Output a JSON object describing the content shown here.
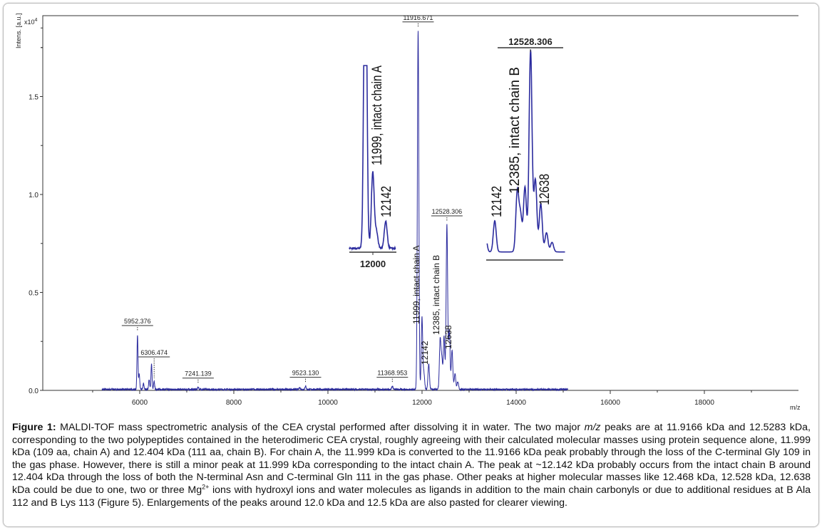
{
  "chart_data": {
    "type": "line",
    "xlabel": "m/z",
    "ylabel": "Intens. [a.u.]",
    "y_multiplier": "x10",
    "y_multiplier_exp": "4",
    "xlim": [
      3940,
      20000
    ],
    "ylim": [
      0,
      1.91
    ],
    "x_ticks": [
      6000,
      8000,
      10000,
      12000,
      14000,
      16000,
      18000
    ],
    "y_ticks": [
      "0.0",
      "0.5",
      "1.0",
      "1.5"
    ],
    "grid": false,
    "line_color": "#2b2b9e",
    "peaks": [
      {
        "mz": 5952.376,
        "intensity": 0.28
      },
      {
        "mz": 5990,
        "intensity": 0.08
      },
      {
        "mz": 6080,
        "intensity": 0.03
      },
      {
        "mz": 6200,
        "intensity": 0.05
      },
      {
        "mz": 6250,
        "intensity": 0.13
      },
      {
        "mz": 6306.474,
        "intensity": 0.04
      },
      {
        "mz": 7241.139,
        "intensity": 0.012
      },
      {
        "mz": 9400,
        "intensity": 0.008
      },
      {
        "mz": 9523.13,
        "intensity": 0.016
      },
      {
        "mz": 11368.953,
        "intensity": 0.016
      },
      {
        "mz": 11916.671,
        "intensity": 1.83
      },
      {
        "mz": 11999,
        "intensity": 0.37
      },
      {
        "mz": 12040,
        "intensity": 0.08
      },
      {
        "mz": 12142,
        "intensity": 0.13
      },
      {
        "mz": 12385,
        "intensity": 0.25
      },
      {
        "mz": 12420,
        "intensity": 0.15
      },
      {
        "mz": 12468,
        "intensity": 0.27
      },
      {
        "mz": 12528.306,
        "intensity": 0.84
      },
      {
        "mz": 12580,
        "intensity": 0.3
      },
      {
        "mz": 12638,
        "intensity": 0.2
      },
      {
        "mz": 12700,
        "intensity": 0.08
      },
      {
        "mz": 12760,
        "intensity": 0.04
      }
    ],
    "peak_labels": [
      {
        "mz": 5952.376,
        "text": "5952.376"
      },
      {
        "mz": 6306.474,
        "text": "6306.474"
      },
      {
        "mz": 7241.139,
        "text": "7241.139"
      },
      {
        "mz": 9523.13,
        "text": "9523.130"
      },
      {
        "mz": 11368.953,
        "text": "11368.953"
      },
      {
        "mz": 11916.671,
        "text": "11916.671"
      },
      {
        "mz": 12528.306,
        "text": "12528.306"
      }
    ],
    "annotations": [
      {
        "mz": 11999,
        "text": "11999, intact chain A"
      },
      {
        "mz": 12142,
        "text": "12142"
      },
      {
        "mz": 12385,
        "text": "12385, intact chain B"
      },
      {
        "mz": 12638,
        "text": "12638"
      }
    ],
    "inset_left": {
      "axis_label": "12000",
      "annotations": [
        "11999, intact chain A",
        "12142"
      ]
    },
    "inset_right": {
      "title": "12528.306",
      "annotations": [
        "12142",
        "12385, intact chain B",
        "12638"
      ]
    }
  },
  "caption": {
    "label": "Figure 1:",
    "text_1": " MALDI-TOF mass spectrometric analysis of the CEA crystal performed after dissolving it in water. The two major ",
    "mz": "m/z",
    "text_2": " peaks are at 11.9166 kDa and 12.5283 kDa, corresponding to the two polypeptides contained in the heterodimeric CEA crystal, roughly agreeing with their calculated molecular masses using protein sequence alone, 11.999 kDa (109 aa, chain A) and 12.404 kDa (111 aa, chain B). For chain A, the 11.999 kDa is converted to the 11.9166 kDa peak probably through the loss of the C-terminal Gly 109 in the gas phase. However, there is still a minor peak at 11.999 kDa corresponding to the intact chain A. The peak at ~12.142 kDa probably occurs from the intact chain B around 12.404 kDa through the loss of both the N-terminal Asn and C-terminal Gln 111 in the gas phase. Other peaks at higher molecular masses like 12.468 kDa, 12.528 kDa, 12.638 kDa could be due to one, two or three Mg",
    "sup": "2+",
    "text_3": " ions with hydroxyl ions and water molecules as ligands in addition to the main chain carbonyls or due to additional residues at B Ala 112 and B Lys 113 (Figure 5). Enlargements of the peaks around 12.0 kDa and 12.5 kDa are also pasted for clearer viewing."
  }
}
